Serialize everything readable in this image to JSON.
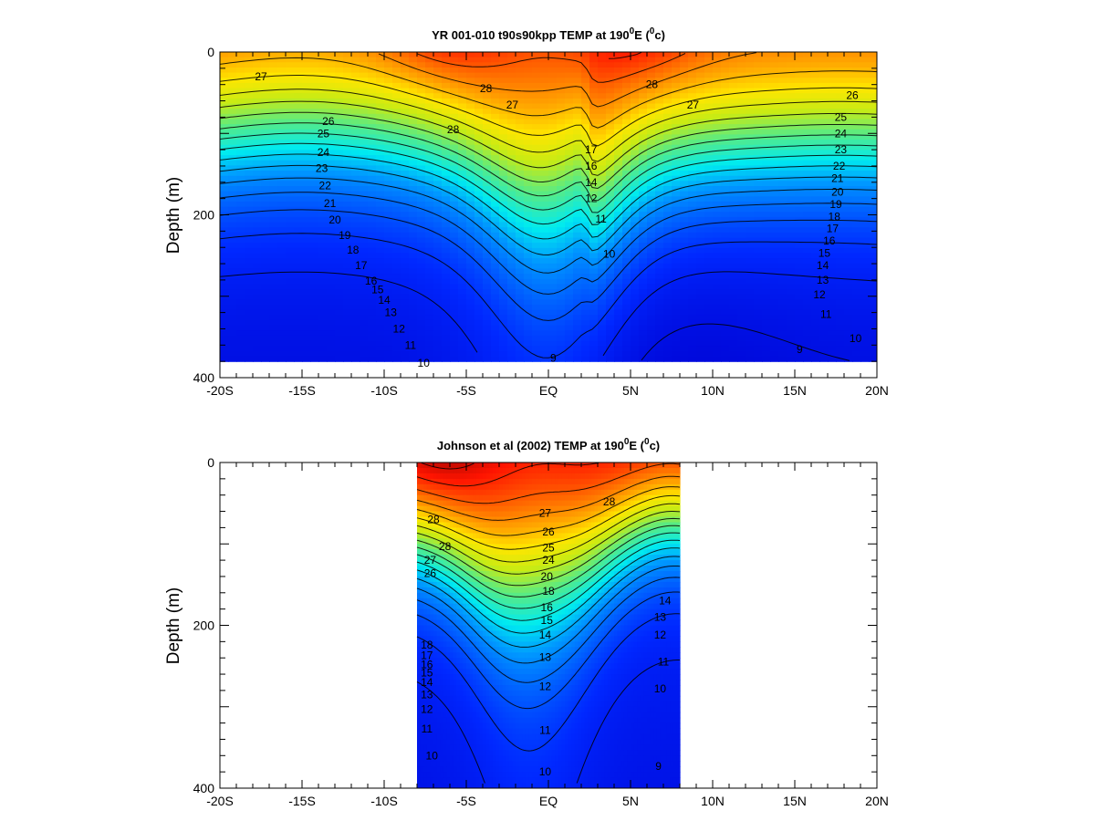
{
  "chart_data": [
    {
      "type": "contour",
      "title_main": "YR 001-010 t90s90kpp TEMP at 190",
      "title_sup": "0",
      "title_mid": "E (",
      "title_sup2": "0",
      "title_end": "c)",
      "ylabel": "Depth (m)",
      "xlim": [
        -20,
        20
      ],
      "ylim": [
        400,
        0
      ],
      "data_depth_limit": 380,
      "x_data_range": [
        -20,
        20
      ],
      "x_ticks": [
        {
          "value": -20,
          "label": "-20S"
        },
        {
          "value": -15,
          "label": "-15S"
        },
        {
          "value": -10,
          "label": "-10S"
        },
        {
          "value": -5,
          "label": "-5S"
        },
        {
          "value": 0,
          "label": "EQ"
        },
        {
          "value": 5,
          "label": "5N"
        },
        {
          "value": 10,
          "label": "10N"
        },
        {
          "value": 15,
          "label": "15N"
        },
        {
          "value": 20,
          "label": "20N"
        }
      ],
      "y_ticks": [
        {
          "value": 0,
          "label": "0"
        },
        {
          "value": 200,
          "label": "200"
        },
        {
          "value": 400,
          "label": "400"
        }
      ],
      "contour_levels": [
        9,
        10,
        11,
        12,
        13,
        14,
        15,
        16,
        17,
        18,
        19,
        20,
        21,
        22,
        23,
        24,
        25,
        26,
        27,
        28
      ],
      "color_range_degC": [
        8,
        29.5
      ],
      "contour_labels": [
        {
          "lat": -17.5,
          "depth": 30,
          "text": "27"
        },
        {
          "lat": -3.8,
          "depth": 45,
          "text": "28"
        },
        {
          "lat": -5.8,
          "depth": 95,
          "text": "28"
        },
        {
          "lat": -2.2,
          "depth": 65,
          "text": "27"
        },
        {
          "lat": 6.3,
          "depth": 40,
          "text": "28"
        },
        {
          "lat": 8.8,
          "depth": 65,
          "text": "27"
        },
        {
          "lat": -13.4,
          "depth": 85,
          "text": "26"
        },
        {
          "lat": -13.7,
          "depth": 100,
          "text": "25"
        },
        {
          "lat": -13.7,
          "depth": 123,
          "text": "24"
        },
        {
          "lat": -13.8,
          "depth": 143,
          "text": "23"
        },
        {
          "lat": -13.6,
          "depth": 164,
          "text": "22"
        },
        {
          "lat": -13.3,
          "depth": 186,
          "text": "21"
        },
        {
          "lat": -13.0,
          "depth": 206,
          "text": "20"
        },
        {
          "lat": -12.4,
          "depth": 225,
          "text": "19"
        },
        {
          "lat": -11.9,
          "depth": 243,
          "text": "18"
        },
        {
          "lat": -11.4,
          "depth": 262,
          "text": "17"
        },
        {
          "lat": -10.8,
          "depth": 281,
          "text": "16"
        },
        {
          "lat": -10.4,
          "depth": 292,
          "text": "15"
        },
        {
          "lat": -10.0,
          "depth": 305,
          "text": "14"
        },
        {
          "lat": -9.6,
          "depth": 320,
          "text": "13"
        },
        {
          "lat": -9.1,
          "depth": 340,
          "text": "12"
        },
        {
          "lat": -8.4,
          "depth": 360,
          "text": "11"
        },
        {
          "lat": -7.6,
          "depth": 382,
          "text": "10"
        },
        {
          "lat": 0.3,
          "depth": 376,
          "text": "9"
        },
        {
          "lat": 3.2,
          "depth": 205,
          "text": "11"
        },
        {
          "lat": 3.7,
          "depth": 248,
          "text": "10"
        },
        {
          "lat": 15.3,
          "depth": 365,
          "text": "9"
        },
        {
          "lat": 18.5,
          "depth": 53,
          "text": "26"
        },
        {
          "lat": 17.8,
          "depth": 80,
          "text": "25"
        },
        {
          "lat": 17.8,
          "depth": 100,
          "text": "24"
        },
        {
          "lat": 17.8,
          "depth": 120,
          "text": "23"
        },
        {
          "lat": 17.7,
          "depth": 140,
          "text": "22"
        },
        {
          "lat": 17.6,
          "depth": 155,
          "text": "21"
        },
        {
          "lat": 17.6,
          "depth": 172,
          "text": "20"
        },
        {
          "lat": 17.5,
          "depth": 187,
          "text": "19"
        },
        {
          "lat": 17.4,
          "depth": 202,
          "text": "18"
        },
        {
          "lat": 17.3,
          "depth": 217,
          "text": "17"
        },
        {
          "lat": 17.1,
          "depth": 232,
          "text": "16"
        },
        {
          "lat": 16.8,
          "depth": 247,
          "text": "15"
        },
        {
          "lat": 16.7,
          "depth": 262,
          "text": "14"
        },
        {
          "lat": 16.7,
          "depth": 280,
          "text": "13"
        },
        {
          "lat": 16.5,
          "depth": 298,
          "text": "12"
        },
        {
          "lat": 16.9,
          "depth": 322,
          "text": "11"
        },
        {
          "lat": 18.7,
          "depth": 352,
          "text": "10"
        },
        {
          "lat": 2.6,
          "depth": 120,
          "text": "17"
        },
        {
          "lat": 2.6,
          "depth": 140,
          "text": "16"
        },
        {
          "lat": 2.6,
          "depth": 160,
          "text": "14"
        },
        {
          "lat": 2.6,
          "depth": 180,
          "text": "12"
        }
      ]
    },
    {
      "type": "contour",
      "title_main": "Johnson et al (2002) TEMP at 190",
      "title_sup": "0",
      "title_mid": "E (",
      "title_sup2": "0",
      "title_end": "c)",
      "ylabel": "Depth (m)",
      "xlim": [
        -20,
        20
      ],
      "ylim": [
        400,
        0
      ],
      "data_depth_limit": 400,
      "x_data_range": [
        -8,
        8
      ],
      "x_ticks": [
        {
          "value": -20,
          "label": "-20S"
        },
        {
          "value": -15,
          "label": "-15S"
        },
        {
          "value": -10,
          "label": "-10S"
        },
        {
          "value": -5,
          "label": "-5S"
        },
        {
          "value": 0,
          "label": "EQ"
        },
        {
          "value": 5,
          "label": "5N"
        },
        {
          "value": 10,
          "label": "10N"
        },
        {
          "value": 15,
          "label": "15N"
        },
        {
          "value": 20,
          "label": "20N"
        }
      ],
      "y_ticks": [
        {
          "value": 0,
          "label": "0"
        },
        {
          "value": 200,
          "label": "200"
        },
        {
          "value": 400,
          "label": "400"
        }
      ],
      "contour_levels": [
        9,
        10,
        11,
        12,
        13,
        14,
        15,
        16,
        17,
        18,
        19,
        20,
        21,
        22,
        23,
        24,
        25,
        26,
        27,
        28
      ],
      "color_range_degC": [
        8,
        29.5
      ],
      "contour_labels": [
        {
          "lat": -7.0,
          "depth": 70,
          "text": "28"
        },
        {
          "lat": -6.3,
          "depth": 103,
          "text": "28"
        },
        {
          "lat": -7.2,
          "depth": 120,
          "text": "27"
        },
        {
          "lat": -7.2,
          "depth": 136,
          "text": "26"
        },
        {
          "lat": -0.2,
          "depth": 62,
          "text": "27"
        },
        {
          "lat": 0.0,
          "depth": 85,
          "text": "26"
        },
        {
          "lat": 0.0,
          "depth": 105,
          "text": "25"
        },
        {
          "lat": 0.0,
          "depth": 120,
          "text": "24"
        },
        {
          "lat": -0.1,
          "depth": 140,
          "text": "20"
        },
        {
          "lat": 0.0,
          "depth": 158,
          "text": "18"
        },
        {
          "lat": -0.1,
          "depth": 178,
          "text": "16"
        },
        {
          "lat": -0.1,
          "depth": 194,
          "text": "15"
        },
        {
          "lat": -0.2,
          "depth": 212,
          "text": "14"
        },
        {
          "lat": -0.2,
          "depth": 239,
          "text": "13"
        },
        {
          "lat": -0.2,
          "depth": 275,
          "text": "12"
        },
        {
          "lat": -0.2,
          "depth": 329,
          "text": "11"
        },
        {
          "lat": -0.2,
          "depth": 380,
          "text": "10"
        },
        {
          "lat": 3.7,
          "depth": 48,
          "text": "28"
        },
        {
          "lat": -7.4,
          "depth": 224,
          "text": "18"
        },
        {
          "lat": -7.4,
          "depth": 237,
          "text": "17"
        },
        {
          "lat": -7.4,
          "depth": 248,
          "text": "16"
        },
        {
          "lat": -7.4,
          "depth": 258,
          "text": "15"
        },
        {
          "lat": -7.4,
          "depth": 270,
          "text": "14"
        },
        {
          "lat": -7.4,
          "depth": 285,
          "text": "13"
        },
        {
          "lat": -7.4,
          "depth": 303,
          "text": "12"
        },
        {
          "lat": -7.4,
          "depth": 327,
          "text": "11"
        },
        {
          "lat": -7.1,
          "depth": 360,
          "text": "10"
        },
        {
          "lat": 6.8,
          "depth": 190,
          "text": "13"
        },
        {
          "lat": 7.1,
          "depth": 170,
          "text": "14"
        },
        {
          "lat": 6.8,
          "depth": 212,
          "text": "12"
        },
        {
          "lat": 7.0,
          "depth": 245,
          "text": "11"
        },
        {
          "lat": 6.8,
          "depth": 278,
          "text": "10"
        },
        {
          "lat": 6.7,
          "depth": 373,
          "text": "9"
        }
      ]
    }
  ]
}
